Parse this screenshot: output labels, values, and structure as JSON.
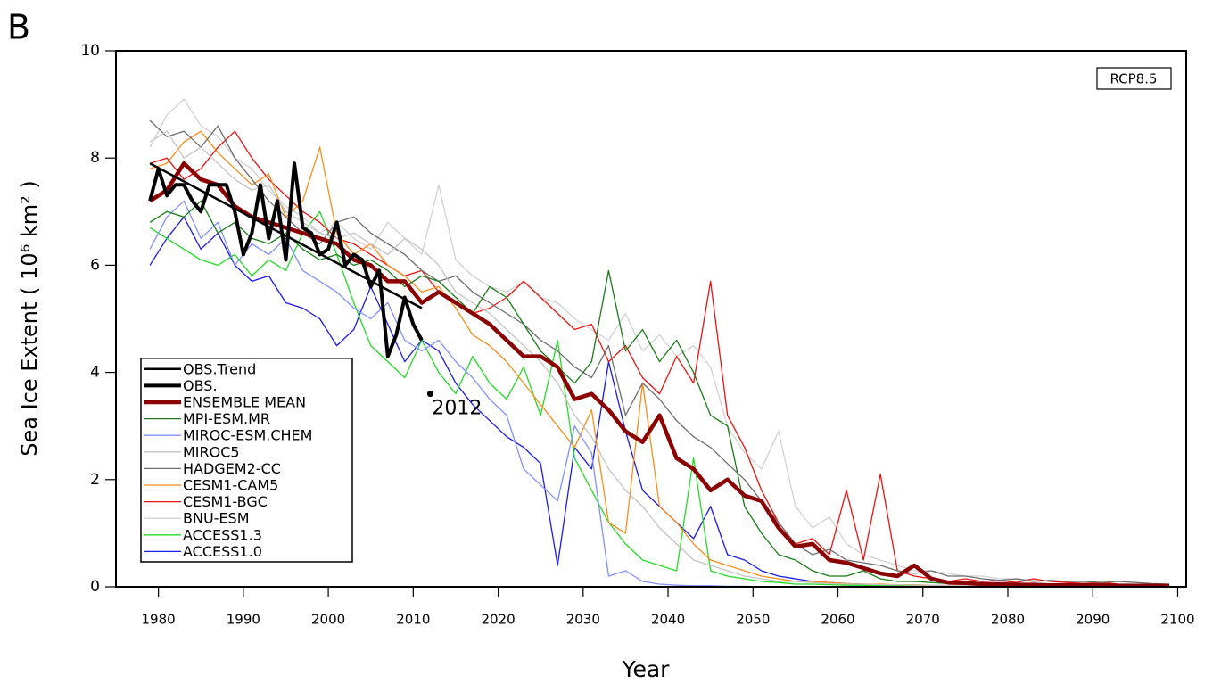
{
  "chart_data": {
    "type": "line",
    "panel_label": "B",
    "inset_label": "RCP8.5",
    "xlabel": "Year",
    "ylabel": "Sea Ice Extent ( 10⁶ km² )",
    "xlim": [
      1975,
      2101
    ],
    "ylim": [
      0,
      10
    ],
    "xticks": [
      1980,
      1990,
      2000,
      2010,
      2020,
      2030,
      2040,
      2050,
      2060,
      2070,
      2080,
      2090,
      2100
    ],
    "yticks": [
      0,
      2,
      4,
      6,
      8,
      10
    ],
    "legend": "lower left",
    "annotation": {
      "text": "2012",
      "x": 2012,
      "y": 3.6
    },
    "x": [
      1979,
      1981,
      1983,
      1985,
      1987,
      1989,
      1991,
      1993,
      1995,
      1997,
      1999,
      2001,
      2003,
      2005,
      2007,
      2009,
      2011,
      2013,
      2015,
      2017,
      2019,
      2021,
      2023,
      2025,
      2027,
      2029,
      2031,
      2033,
      2035,
      2037,
      2039,
      2041,
      2043,
      2045,
      2047,
      2049,
      2051,
      2053,
      2055,
      2057,
      2059,
      2061,
      2063,
      2065,
      2067,
      2069,
      2071,
      2073,
      2075,
      2077,
      2079,
      2081,
      2083,
      2085,
      2087,
      2089,
      2091,
      2093,
      2095,
      2097,
      2099
    ],
    "series": [
      {
        "name": "OBS.Trend",
        "color": "#000000",
        "width": 2.5,
        "x": [
          1979,
          2011
        ],
        "values": [
          7.9,
          5.2
        ]
      },
      {
        "name": "OBS.",
        "color": "#000000",
        "width": 4,
        "x": [
          1979,
          1980,
          1981,
          1982,
          1983,
          1984,
          1985,
          1986,
          1987,
          1988,
          1989,
          1990,
          1991,
          1992,
          1993,
          1994,
          1995,
          1996,
          1997,
          1998,
          1999,
          2000,
          2001,
          2002,
          2003,
          2004,
          2005,
          2006,
          2007,
          2008,
          2009,
          2010,
          2011
        ],
        "values": [
          7.2,
          7.8,
          7.3,
          7.5,
          7.5,
          7.2,
          7.0,
          7.5,
          7.5,
          7.5,
          7.0,
          6.2,
          6.6,
          7.5,
          6.5,
          7.2,
          6.1,
          7.9,
          6.7,
          6.6,
          6.2,
          6.3,
          6.8,
          6.0,
          6.2,
          6.1,
          5.6,
          5.9,
          4.3,
          4.7,
          5.4,
          4.9,
          4.6
        ]
      },
      {
        "name": "ENSEMBLE MEAN",
        "color": "#8b0000",
        "width": 4.5,
        "values": [
          7.2,
          7.4,
          7.9,
          7.6,
          7.5,
          7.1,
          6.9,
          6.8,
          6.7,
          6.6,
          6.5,
          6.4,
          6.1,
          6.0,
          5.7,
          5.7,
          5.3,
          5.5,
          5.3,
          5.1,
          4.9,
          4.6,
          4.3,
          4.3,
          4.1,
          3.5,
          3.6,
          3.3,
          2.9,
          2.7,
          3.2,
          2.4,
          2.2,
          1.8,
          2.0,
          1.7,
          1.6,
          1.1,
          0.75,
          0.8,
          0.5,
          0.45,
          0.35,
          0.25,
          0.2,
          0.4,
          0.15,
          0.08,
          0.07,
          0.05,
          0.05,
          0.04,
          0.04,
          0.03,
          0.03,
          0.03,
          0.03,
          0.02,
          0.02,
          0.02,
          0.02
        ]
      },
      {
        "name": "MPI-ESM.MR",
        "color": "#1a7a1a",
        "width": 1.3,
        "values": [
          6.8,
          7.0,
          6.9,
          7.2,
          6.6,
          6.8,
          6.5,
          6.4,
          6.6,
          6.3,
          6.1,
          6.2,
          6.0,
          6.1,
          5.9,
          5.6,
          5.8,
          5.7,
          5.4,
          5.1,
          5.6,
          5.4,
          4.9,
          4.4,
          4.1,
          3.8,
          4.2,
          5.9,
          4.4,
          4.8,
          4.2,
          4.6,
          4.0,
          3.2,
          3.0,
          1.5,
          1.0,
          0.6,
          0.5,
          0.3,
          0.2,
          0.2,
          0.3,
          0.15,
          0.1,
          0.1,
          0.08,
          0.06,
          0.05,
          0.05,
          0.05,
          0.04,
          0.04,
          0.04,
          0.03,
          0.03,
          0.03,
          0.03,
          0.02,
          0.02,
          0.02
        ]
      },
      {
        "name": "MIROC-ESM.CHEM",
        "color": "#8090ff",
        "width": 1.3,
        "values": [
          6.3,
          6.9,
          7.2,
          6.5,
          6.8,
          6.0,
          6.4,
          6.2,
          6.5,
          5.9,
          5.7,
          5.5,
          5.2,
          5.0,
          5.3,
          4.6,
          4.4,
          4.6,
          4.2,
          3.9,
          3.5,
          3.2,
          2.2,
          1.9,
          1.6,
          3.0,
          2.5,
          0.2,
          0.3,
          0.1,
          0.05,
          0.03,
          0.02,
          0.02,
          0.01,
          0.01,
          0,
          0,
          0,
          0,
          0,
          0,
          0,
          0,
          0,
          0,
          0,
          0,
          0,
          0,
          0,
          0,
          0,
          0,
          0,
          0,
          0,
          0,
          0,
          0,
          0
        ]
      },
      {
        "name": "MIROC5",
        "color": "#c4c4c4",
        "width": 1.3,
        "values": [
          8.3,
          8.5,
          8.0,
          8.2,
          7.9,
          7.6,
          7.4,
          7.5,
          7.0,
          6.8,
          6.6,
          6.5,
          6.6,
          6.4,
          6.2,
          6.5,
          6.3,
          6.0,
          5.5,
          5.3,
          5.1,
          4.8,
          4.5,
          4.2,
          3.8,
          3.2,
          2.8,
          2.2,
          1.8,
          1.5,
          1.1,
          0.8,
          0.5,
          0.4,
          0.3,
          0.2,
          0.15,
          0.1,
          0.1,
          0.08,
          0.06,
          0.05,
          0.05,
          0.04,
          0.04,
          0.03,
          0.03,
          0.03,
          0.02,
          0.02,
          0.02,
          0.02,
          0.02,
          0.01,
          0.01,
          0.01,
          0.01,
          0.01,
          0.01,
          0.01,
          0.01
        ]
      },
      {
        "name": "HADGEM2-CC",
        "color": "#6e6e6e",
        "width": 1.3,
        "values": [
          8.7,
          8.4,
          8.5,
          8.2,
          8.6,
          8.0,
          7.6,
          7.2,
          6.9,
          6.6,
          6.4,
          6.8,
          6.9,
          6.6,
          6.4,
          6.2,
          5.9,
          5.7,
          5.8,
          5.5,
          5.3,
          5.1,
          4.9,
          4.6,
          4.4,
          4.1,
          3.9,
          4.5,
          3.2,
          3.8,
          3.5,
          3.1,
          2.8,
          2.6,
          2.3,
          2.0,
          1.6,
          1.2,
          0.8,
          0.6,
          0.7,
          0.5,
          0.45,
          0.4,
          0.3,
          0.25,
          0.3,
          0.2,
          0.2,
          0.15,
          0.12,
          0.15,
          0.1,
          0.12,
          0.1,
          0.1,
          0.08,
          0.1,
          0.08,
          0.06,
          0.05
        ]
      },
      {
        "name": "CESM1-CAM5",
        "color": "#ff8c1a",
        "width": 1.3,
        "values": [
          7.8,
          7.9,
          8.3,
          8.5,
          8.1,
          7.8,
          7.5,
          7.7,
          6.9,
          7.2,
          8.2,
          6.6,
          6.2,
          6.4,
          6.0,
          5.8,
          5.5,
          5.6,
          5.2,
          4.7,
          4.5,
          4.2,
          3.8,
          3.4,
          3.0,
          2.6,
          3.3,
          1.2,
          1.0,
          3.8,
          1.5,
          1.2,
          0.8,
          0.5,
          0.4,
          0.3,
          0.2,
          0.15,
          0.1,
          0.1,
          0.08,
          0.06,
          0.05,
          0.05,
          0.04,
          0.04,
          0.03,
          0.03,
          0.03,
          0.02,
          0.02,
          0.02,
          0.02,
          0.02,
          0.02,
          0.02,
          0.02,
          0.02,
          0.02,
          0.02,
          0.02
        ]
      },
      {
        "name": "CESM1-BGC",
        "color": "#ee1111",
        "width": 1.3,
        "values": [
          7.9,
          8.0,
          7.6,
          7.8,
          8.2,
          8.5,
          8.0,
          7.6,
          7.3,
          7.0,
          6.8,
          6.5,
          6.4,
          6.2,
          6.0,
          5.8,
          5.9,
          5.5,
          5.3,
          5.1,
          5.2,
          5.4,
          5.7,
          5.4,
          5.1,
          4.8,
          4.9,
          4.2,
          4.5,
          3.9,
          3.6,
          4.3,
          3.8,
          5.7,
          3.2,
          2.6,
          1.8,
          1.2,
          0.8,
          0.9,
          0.6,
          1.8,
          0.5,
          2.1,
          0.3,
          0.2,
          0.15,
          0.1,
          0.15,
          0.1,
          0.12,
          0.08,
          0.15,
          0.1,
          0.08,
          0.06,
          0.08,
          0.05,
          0.04,
          0.04,
          0.03
        ]
      },
      {
        "name": "BNU-ESM",
        "color": "#d2d2d2",
        "width": 1.3,
        "values": [
          8.2,
          8.8,
          9.1,
          8.6,
          8.4,
          8.0,
          7.8,
          7.4,
          7.1,
          6.9,
          6.6,
          6.8,
          6.5,
          6.3,
          6.8,
          6.5,
          6.2,
          7.5,
          6.1,
          5.8,
          5.6,
          5.5,
          5.7,
          5.4,
          5.3,
          5.0,
          4.8,
          4.6,
          5.1,
          4.4,
          4.7,
          4.3,
          4.5,
          4.1,
          3.0,
          2.5,
          2.2,
          2.9,
          1.5,
          1.1,
          1.3,
          0.8,
          0.6,
          0.5,
          0.4,
          0.3,
          0.3,
          0.25,
          0.2,
          0.2,
          0.15,
          0.15,
          0.12,
          0.1,
          0.1,
          0.08,
          0.08,
          0.06,
          0.05,
          0.05,
          0.04
        ]
      },
      {
        "name": "ACCESS1.3",
        "color": "#22dd22",
        "width": 1.3,
        "values": [
          6.7,
          6.5,
          6.3,
          6.1,
          6.0,
          6.2,
          5.8,
          6.1,
          5.9,
          6.6,
          7.0,
          6.2,
          5.3,
          4.5,
          4.2,
          3.9,
          4.6,
          4.0,
          3.6,
          4.3,
          3.8,
          3.5,
          4.1,
          3.2,
          4.6,
          2.4,
          1.8,
          1.2,
          0.8,
          0.5,
          0.4,
          0.3,
          2.4,
          0.3,
          0.2,
          0.15,
          0.1,
          0.08,
          0.05,
          0.05,
          0.04,
          0.03,
          0.03,
          0.02,
          0.02,
          0.02,
          0.01,
          0.01,
          0.01,
          0.01,
          0.01,
          0.01,
          0.01,
          0.01,
          0.01,
          0.01,
          0.01,
          0.01,
          0.01,
          0.01,
          0.01
        ]
      },
      {
        "name": "ACCESS1.0",
        "color": "#1a1aee",
        "width": 1.3,
        "values": [
          6.0,
          6.5,
          6.9,
          6.3,
          6.6,
          6.0,
          5.7,
          5.8,
          5.3,
          5.2,
          5.0,
          4.5,
          4.8,
          5.6,
          4.9,
          4.2,
          4.6,
          4.4,
          3.8,
          3.4,
          3.1,
          2.8,
          2.6,
          2.3,
          0.4,
          2.6,
          2.2,
          4.2,
          2.9,
          1.8,
          1.5,
          1.2,
          0.9,
          1.5,
          0.6,
          0.5,
          0.3,
          0.2,
          0.15,
          0.1,
          0.08,
          0.06,
          0.05,
          0.04,
          0.04,
          0.03,
          0.03,
          0.02,
          0.02,
          0.02,
          0.02,
          0.02,
          0.02,
          0.02,
          0.02,
          0.02,
          0.02,
          0.02,
          0.02,
          0.02,
          0.02
        ]
      }
    ]
  }
}
